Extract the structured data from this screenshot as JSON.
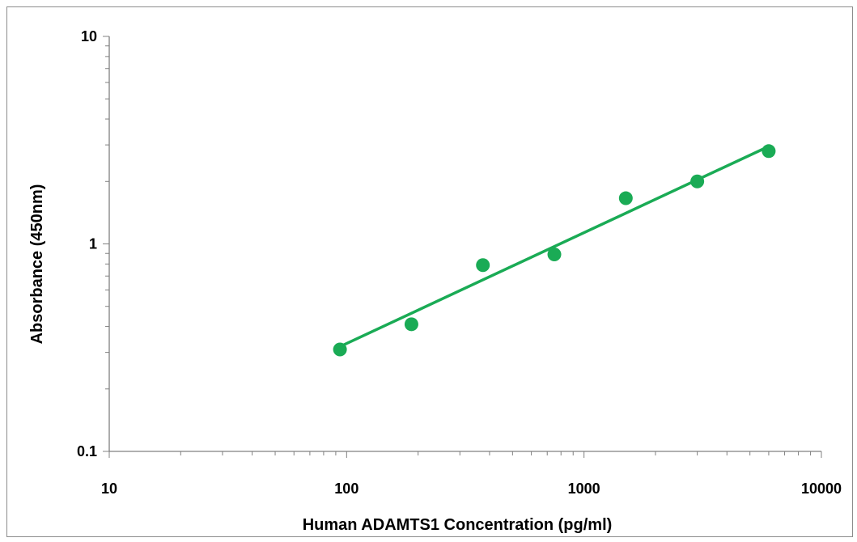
{
  "chart_data": {
    "type": "scatter",
    "title": "",
    "xlabel": "Human ADAMTS1  Concentration (pg/ml)",
    "ylabel": "Absorbance (450nm)",
    "x_scale": "log",
    "y_scale": "log",
    "xlim": [
      10,
      10000
    ],
    "ylim": [
      0.1,
      10
    ],
    "x_ticks": [
      "10",
      "100",
      "1000",
      "10000"
    ],
    "y_ticks": [
      "0.1",
      "1",
      "10"
    ],
    "grid": false,
    "legend": "none",
    "series": [
      {
        "color": "#1aab55",
        "marker": "circle",
        "points": [
          {
            "x": 93.75,
            "y": 0.31
          },
          {
            "x": 187.5,
            "y": 0.41
          },
          {
            "x": 375,
            "y": 0.79
          },
          {
            "x": 750,
            "y": 0.89
          },
          {
            "x": 1500,
            "y": 1.66
          },
          {
            "x": 3000,
            "y": 2.0
          },
          {
            "x": 6000,
            "y": 2.8
          }
        ],
        "trendline": {
          "from": {
            "x": 93.75,
            "y": 0.32
          },
          "to": {
            "x": 6000,
            "y": 2.95
          }
        }
      }
    ],
    "axis_color": "#808080"
  }
}
